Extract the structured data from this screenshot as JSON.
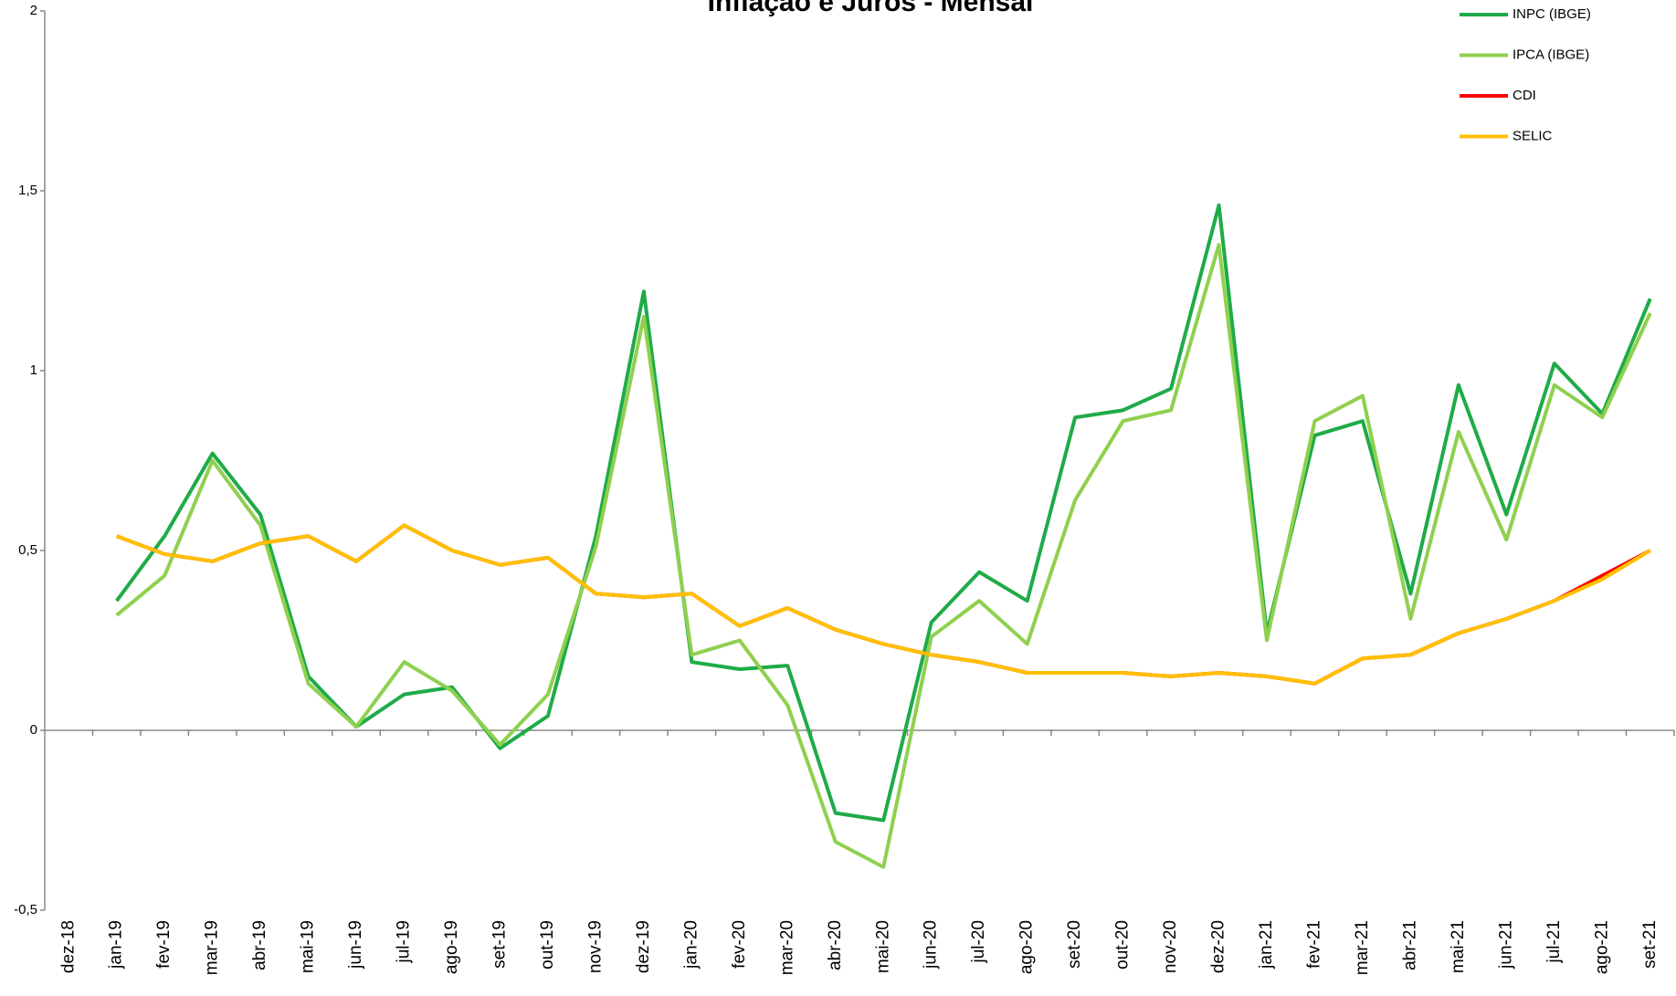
{
  "chart_data": {
    "type": "line",
    "title": "Inflação e Juros - Mensal",
    "categories": [
      "dez-18",
      "jan-19",
      "fev-19",
      "mar-19",
      "abr-19",
      "mai-19",
      "jun-19",
      "jul-19",
      "ago-19",
      "set-19",
      "out-19",
      "nov-19",
      "dez-19",
      "jan-20",
      "fev-20",
      "mar-20",
      "abr-20",
      "mai-20",
      "jun-20",
      "jul-20",
      "ago-20",
      "set-20",
      "out-20",
      "nov-20",
      "dez-20",
      "jan-21",
      "fev-21",
      "mar-21",
      "abr-21",
      "mai-21",
      "jun-21",
      "jul-21",
      "ago-21",
      "set-21"
    ],
    "series": [
      {
        "name": "INPC (IBGE)",
        "color": "#1fab48",
        "values": [
          null,
          0.36,
          0.54,
          0.77,
          0.6,
          0.15,
          0.01,
          0.1,
          0.12,
          -0.05,
          0.04,
          0.54,
          1.22,
          0.19,
          0.17,
          0.18,
          -0.23,
          -0.25,
          0.3,
          0.44,
          0.36,
          0.87,
          0.89,
          0.95,
          1.46,
          0.27,
          0.82,
          0.86,
          0.38,
          0.96,
          0.6,
          1.02,
          0.88,
          1.2
        ]
      },
      {
        "name": "IPCA (IBGE)",
        "color": "#8fd04f",
        "values": [
          null,
          0.32,
          0.43,
          0.75,
          0.57,
          0.13,
          0.01,
          0.19,
          0.11,
          -0.04,
          0.1,
          0.51,
          1.15,
          0.21,
          0.25,
          0.07,
          -0.31,
          -0.38,
          0.26,
          0.36,
          0.24,
          0.64,
          0.86,
          0.89,
          1.35,
          0.25,
          0.86,
          0.93,
          0.31,
          0.83,
          0.53,
          0.96,
          0.87,
          1.16
        ]
      },
      {
        "name": "CDI",
        "color": "#ff0000",
        "values": [
          null,
          0.54,
          0.49,
          0.47,
          0.52,
          0.54,
          0.47,
          0.57,
          0.5,
          0.46,
          0.48,
          0.38,
          0.37,
          0.38,
          0.29,
          0.34,
          0.28,
          0.24,
          0.21,
          0.19,
          0.16,
          0.16,
          0.16,
          0.15,
          0.16,
          0.15,
          0.13,
          0.2,
          0.21,
          0.27,
          0.31,
          0.36,
          0.43,
          0.5
        ]
      },
      {
        "name": "SELIC",
        "color": "#ffc000",
        "values": [
          null,
          0.54,
          0.49,
          0.47,
          0.52,
          0.54,
          0.47,
          0.57,
          0.5,
          0.46,
          0.48,
          0.38,
          0.37,
          0.38,
          0.29,
          0.34,
          0.28,
          0.24,
          0.21,
          0.19,
          0.16,
          0.16,
          0.16,
          0.15,
          0.16,
          0.15,
          0.13,
          0.2,
          0.21,
          0.27,
          0.31,
          0.36,
          0.42,
          0.5
        ]
      }
    ],
    "ylim": [
      -0.5,
      2
    ],
    "yticks": [
      {
        "value": -0.5,
        "label": "-0,5"
      },
      0,
      {
        "value": 0.5,
        "label": "0,5"
      },
      1,
      {
        "value": 1.5,
        "label": "1,5"
      },
      2
    ],
    "grid": false,
    "legend": "top-right"
  }
}
